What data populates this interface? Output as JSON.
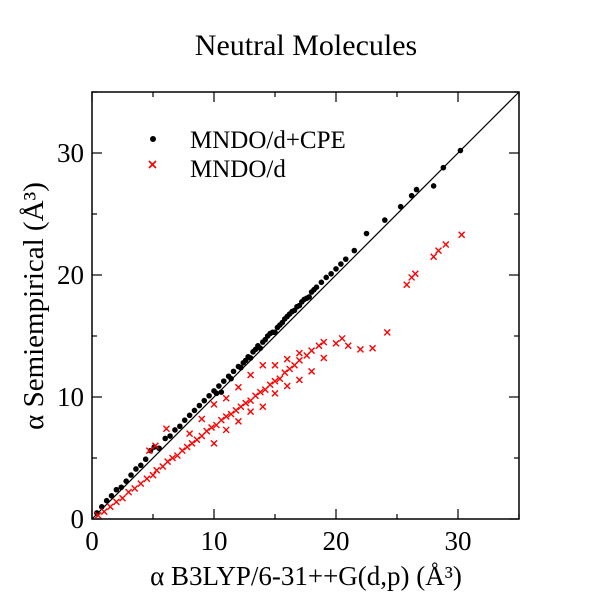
{
  "chart_data": {
    "type": "scatter",
    "title": "Neutral Molecules",
    "xlabel": "α B3LYP/6-31++G(d,p) (Å³)",
    "ylabel": "α Semiempirical (Å³)",
    "xlim": [
      0,
      35
    ],
    "ylim": [
      0,
      35
    ],
    "xticks": [
      0,
      10,
      20,
      30
    ],
    "yticks": [
      0,
      10,
      20,
      30
    ],
    "xtick_labels": [
      "0",
      "10",
      "20",
      "30"
    ],
    "ytick_labels": [
      "0",
      "10",
      "20",
      "30"
    ],
    "reference_line": {
      "label": "y = x",
      "from": [
        0,
        0
      ],
      "to": [
        35,
        35
      ]
    },
    "legend_position": "top-left",
    "series": [
      {
        "name": "MNDO/d+CPE",
        "marker": "dot",
        "color": "#000000",
        "points": [
          [
            0.4,
            0.5
          ],
          [
            0.8,
            1.0
          ],
          [
            1.2,
            1.5
          ],
          [
            1.6,
            1.9
          ],
          [
            2.0,
            2.4
          ],
          [
            2.4,
            2.6
          ],
          [
            2.8,
            3.1
          ],
          [
            3.2,
            3.6
          ],
          [
            3.6,
            4.1
          ],
          [
            4.0,
            4.4
          ],
          [
            4.4,
            4.9
          ],
          [
            4.8,
            5.6
          ],
          [
            5.1,
            5.9
          ],
          [
            5.5,
            5.8
          ],
          [
            6.0,
            6.6
          ],
          [
            6.4,
            6.8
          ],
          [
            6.8,
            7.3
          ],
          [
            7.2,
            7.6
          ],
          [
            7.6,
            8.1
          ],
          [
            8.0,
            8.5
          ],
          [
            8.4,
            8.9
          ],
          [
            8.8,
            9.3
          ],
          [
            9.2,
            9.7
          ],
          [
            9.6,
            10.1
          ],
          [
            10.0,
            10.5
          ],
          [
            10.4,
            10.9
          ],
          [
            10.8,
            11.3
          ],
          [
            11.2,
            11.7
          ],
          [
            11.6,
            12.1
          ],
          [
            12.0,
            12.5
          ],
          [
            12.4,
            12.8
          ],
          [
            12.8,
            13.3
          ],
          [
            13.2,
            13.7
          ],
          [
            13.6,
            14.2
          ],
          [
            14.0,
            14.5
          ],
          [
            14.4,
            15.0
          ],
          [
            14.8,
            15.3
          ],
          [
            15.2,
            15.7
          ],
          [
            15.6,
            16.1
          ],
          [
            16.0,
            16.6
          ],
          [
            16.4,
            17.0
          ],
          [
            16.8,
            17.4
          ],
          [
            17.2,
            17.8
          ],
          [
            17.6,
            18.1
          ],
          [
            18.0,
            18.6
          ],
          [
            18.4,
            19.0
          ],
          [
            18.8,
            19.4
          ],
          [
            19.2,
            19.8
          ],
          [
            19.6,
            20.1
          ],
          [
            20.0,
            20.5
          ],
          [
            20.4,
            20.9
          ],
          [
            20.8,
            21.3
          ],
          [
            21.5,
            22.0
          ],
          [
            22.5,
            23.4
          ],
          [
            24.0,
            24.5
          ],
          [
            25.3,
            25.6
          ],
          [
            26.2,
            26.5
          ],
          [
            26.6,
            27.0
          ],
          [
            28.0,
            27.3
          ],
          [
            28.8,
            28.8
          ],
          [
            30.2,
            30.2
          ],
          [
            10.2,
            10.3
          ],
          [
            10.6,
            10.4
          ],
          [
            11.4,
            11.5
          ],
          [
            12.2,
            12.4
          ],
          [
            12.6,
            13.0
          ],
          [
            13.0,
            13.2
          ],
          [
            13.4,
            13.9
          ],
          [
            13.8,
            14.0
          ],
          [
            14.2,
            14.7
          ],
          [
            14.6,
            15.2
          ],
          [
            15.0,
            15.3
          ],
          [
            15.4,
            15.9
          ],
          [
            15.8,
            16.4
          ],
          [
            16.2,
            16.8
          ],
          [
            16.6,
            17.1
          ],
          [
            17.0,
            17.5
          ],
          [
            17.4,
            18.0
          ],
          [
            17.8,
            18.2
          ],
          [
            18.2,
            18.8
          ]
        ]
      },
      {
        "name": "MNDO/d",
        "marker": "x",
        "color": "#ff0000",
        "points": [
          [
            0.5,
            0.3
          ],
          [
            1.0,
            0.6
          ],
          [
            1.5,
            1.0
          ],
          [
            2.0,
            1.4
          ],
          [
            2.5,
            1.7
          ],
          [
            3.0,
            2.2
          ],
          [
            3.5,
            2.5
          ],
          [
            4.0,
            2.9
          ],
          [
            4.5,
            3.3
          ],
          [
            5.0,
            3.6
          ],
          [
            5.3,
            4.0
          ],
          [
            5.8,
            4.3
          ],
          [
            6.2,
            4.7
          ],
          [
            6.6,
            5.0
          ],
          [
            7.0,
            5.2
          ],
          [
            7.4,
            5.6
          ],
          [
            7.8,
            5.9
          ],
          [
            8.2,
            6.2
          ],
          [
            8.6,
            6.5
          ],
          [
            9.0,
            6.8
          ],
          [
            9.4,
            7.2
          ],
          [
            9.8,
            7.5
          ],
          [
            10.2,
            7.7
          ],
          [
            10.6,
            8.1
          ],
          [
            11.0,
            8.4
          ],
          [
            11.4,
            8.6
          ],
          [
            11.8,
            8.9
          ],
          [
            12.2,
            9.2
          ],
          [
            12.6,
            9.5
          ],
          [
            13.0,
            9.7
          ],
          [
            13.4,
            10.1
          ],
          [
            13.8,
            10.4
          ],
          [
            14.2,
            10.6
          ],
          [
            14.6,
            11.0
          ],
          [
            15.0,
            11.3
          ],
          [
            15.4,
            11.5
          ],
          [
            15.8,
            12.0
          ],
          [
            16.2,
            12.3
          ],
          [
            16.6,
            12.6
          ],
          [
            17.0,
            13.0
          ],
          [
            17.6,
            13.4
          ],
          [
            18.0,
            13.8
          ],
          [
            18.6,
            14.2
          ],
          [
            19.0,
            14.5
          ],
          [
            20.0,
            14.4
          ],
          [
            20.5,
            14.8
          ],
          [
            21.0,
            14.2
          ],
          [
            22.0,
            13.9
          ],
          [
            23.0,
            14.0
          ],
          [
            24.2,
            15.3
          ],
          [
            25.8,
            19.2
          ],
          [
            26.2,
            19.8
          ],
          [
            26.5,
            20.1
          ],
          [
            28.0,
            21.5
          ],
          [
            28.4,
            22.0
          ],
          [
            29.0,
            22.5
          ],
          [
            30.3,
            23.3
          ],
          [
            5.2,
            6.0
          ],
          [
            6.1,
            7.4
          ],
          [
            4.7,
            5.6
          ],
          [
            8.0,
            7.0
          ],
          [
            9.0,
            8.2
          ],
          [
            10.0,
            9.4
          ],
          [
            11.0,
            9.9
          ],
          [
            12.0,
            10.8
          ],
          [
            13.0,
            11.8
          ],
          [
            14.0,
            12.6
          ],
          [
            15.0,
            12.6
          ],
          [
            16.0,
            13.1
          ],
          [
            17.0,
            13.6
          ],
          [
            10.0,
            6.2
          ],
          [
            11.0,
            7.3
          ],
          [
            12.0,
            8.0
          ],
          [
            13.0,
            8.8
          ],
          [
            14.0,
            9.2
          ],
          [
            15.0,
            10.3
          ],
          [
            16.0,
            10.9
          ],
          [
            17.0,
            11.4
          ],
          [
            18.0,
            12.1
          ],
          [
            19.0,
            13.2
          ]
        ]
      }
    ]
  }
}
